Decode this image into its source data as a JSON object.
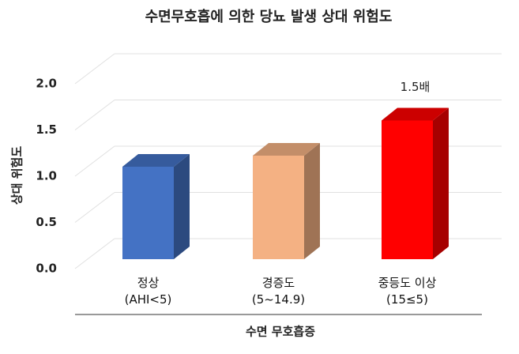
{
  "chart_data": {
    "type": "bar",
    "title": "수면무호흡에 의한 당뇨 발생 상대 위험도",
    "y_label": "상대 위험도",
    "x_label": "수면 무호흡증",
    "categories": [
      "정상\n(AHI<5)",
      "경증도\n(5~14.9)",
      "중등도 이상\n(15≤5)"
    ],
    "values": [
      1.0,
      1.12,
      1.5
    ],
    "value_labels": [
      null,
      null,
      "1.5배"
    ],
    "colors": [
      "#4472c4",
      "#f4b183",
      "#ff0000"
    ],
    "ylim": [
      0,
      2
    ],
    "yticks": [
      {
        "value": 0,
        "label": "0.0"
      },
      0.5,
      {
        "value": 1,
        "label": "1.0"
      },
      1.5,
      {
        "value": 2,
        "label": "2.0"
      }
    ],
    "grid": true
  }
}
